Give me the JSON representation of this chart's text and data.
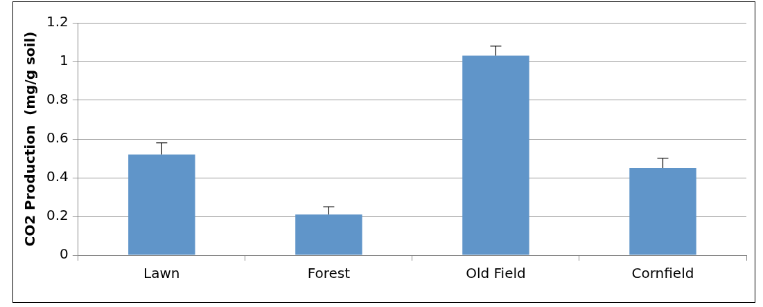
{
  "chart_data": {
    "type": "bar",
    "ylabel": "CO2 Production  (mg/g soil)",
    "categories": [
      "Lawn",
      "Forest",
      "Old Field",
      "Cornfield"
    ],
    "values": [
      0.52,
      0.21,
      1.03,
      0.45
    ],
    "color": "#6095c9",
    "errors": [
      [
        0.52,
        0.58
      ],
      [
        0.21,
        0.25
      ],
      [
        1.03,
        1.08
      ],
      [
        0.45,
        0.5
      ]
    ],
    "ylim": [
      0,
      1.2
    ],
    "yticks": [
      0,
      0.2,
      0.4,
      0.6,
      0.8,
      1,
      1.2
    ],
    "grid": "y",
    "legend": false
  }
}
